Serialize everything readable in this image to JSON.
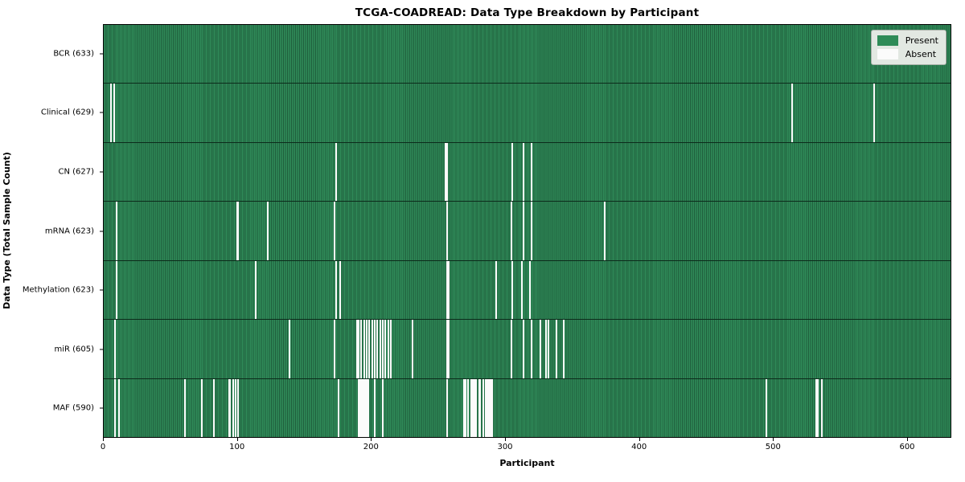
{
  "title": "TCGA-COADREAD: Data Type Breakdown by Participant",
  "colors": {
    "present": "#2e8b57",
    "present_edge": "#1f5e3c",
    "absent": "#fbfbfb",
    "row_divider": "#0c2b1b",
    "legend_bg": "#e2e8e2"
  },
  "legend": {
    "present_label": "Present",
    "absent_label": "Absent"
  },
  "chart_data": {
    "type": "heatmap",
    "title": "TCGA-COADREAD: Data Type Breakdown by Participant",
    "xlabel": "Participant",
    "ylabel": "Data Type (Total Sample Count)",
    "legend_entries": [
      "Present",
      "Absent"
    ],
    "legend_position": "upper right",
    "grid": false,
    "n_participants": 633,
    "x_ticks": [
      0,
      100,
      200,
      300,
      400,
      500,
      600
    ],
    "value_encoding": {
      "present": 1,
      "absent": 0
    },
    "rows": [
      {
        "name": "BCR",
        "label": "BCR (633)",
        "total_samples": 633,
        "absent_participants": []
      },
      {
        "name": "Clinical",
        "label": "Clinical (629)",
        "total_samples": 629,
        "absent_participants": [
          5,
          7,
          514,
          575
        ]
      },
      {
        "name": "CN",
        "label": "CN (627)",
        "total_samples": 627,
        "absent_participants": [
          173,
          255,
          256,
          305,
          313,
          319
        ]
      },
      {
        "name": "mRNA",
        "label": "mRNA (623)",
        "total_samples": 623,
        "absent_participants": [
          9,
          99,
          100,
          122,
          172,
          256,
          304,
          313,
          319,
          374
        ]
      },
      {
        "name": "Methylation",
        "label": "Methylation (623)",
        "total_samples": 623,
        "absent_participants": [
          9,
          113,
          173,
          176,
          256,
          257,
          293,
          305,
          312,
          318
        ]
      },
      {
        "name": "miR",
        "label": "miR (605)",
        "total_samples": 605,
        "absent_participants": [
          8,
          138,
          172,
          189,
          190,
          192,
          194,
          196,
          198,
          200,
          202,
          204,
          206,
          208,
          210,
          212,
          214,
          230,
          256,
          257,
          304,
          313,
          319,
          326,
          330,
          332,
          338,
          343
        ]
      },
      {
        "name": "MAF",
        "label": "MAF (590)",
        "total_samples": 590,
        "absent_participants": [
          8,
          11,
          60,
          73,
          82,
          93,
          94,
          96,
          98,
          100,
          175,
          190,
          191,
          192,
          193,
          194,
          195,
          196,
          197,
          202,
          208,
          256,
          269,
          270,
          272,
          274,
          275,
          276,
          277,
          278,
          280,
          281,
          283,
          285,
          286,
          287,
          288,
          289,
          290,
          495,
          532,
          533,
          536
        ]
      }
    ]
  }
}
